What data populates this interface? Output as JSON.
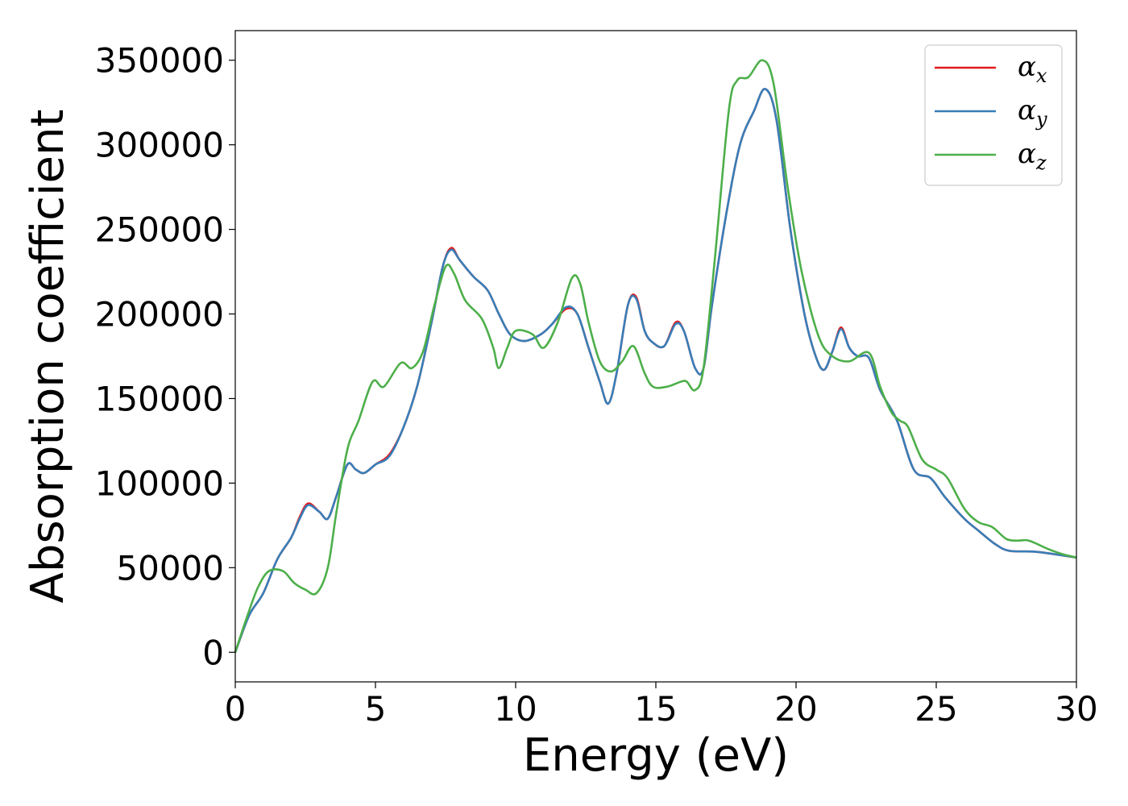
{
  "chart_data": {
    "type": "line",
    "xlabel": "Energy (eV)",
    "ylabel": "Absorption coefficient",
    "xlim": [
      0,
      30
    ],
    "ylim": [
      -17500,
      367500
    ],
    "grid": false,
    "legend_placement": "top-right",
    "x_ticks": [
      "0",
      "5",
      "10",
      "15",
      "20",
      "25",
      "30"
    ],
    "y_ticks": [
      "0",
      "50000",
      "100000",
      "150000",
      "200000",
      "250000",
      "300000",
      "350000"
    ],
    "series": [
      {
        "name": "α_x",
        "symbol": "α",
        "subscript": "x",
        "color": "#e41a1c",
        "points": [
          [
            0,
            0
          ],
          [
            0.5,
            22000
          ],
          [
            1.0,
            35000
          ],
          [
            1.5,
            55000
          ],
          [
            2.0,
            68000
          ],
          [
            2.3,
            80000
          ],
          [
            2.6,
            88000
          ],
          [
            3.0,
            83000
          ],
          [
            3.3,
            79000
          ],
          [
            3.6,
            92000
          ],
          [
            4.0,
            111000
          ],
          [
            4.3,
            108000
          ],
          [
            4.6,
            106000
          ],
          [
            5.0,
            111000
          ],
          [
            5.5,
            117000
          ],
          [
            6.0,
            133000
          ],
          [
            6.5,
            158000
          ],
          [
            7.0,
            195000
          ],
          [
            7.4,
            228000
          ],
          [
            7.7,
            239000
          ],
          [
            8.0,
            232000
          ],
          [
            8.5,
            222000
          ],
          [
            9.0,
            214000
          ],
          [
            9.4,
            200000
          ],
          [
            9.8,
            188000
          ],
          [
            10.3,
            184000
          ],
          [
            10.9,
            188000
          ],
          [
            11.3,
            194000
          ],
          [
            11.8,
            203000
          ],
          [
            12.2,
            200000
          ],
          [
            12.6,
            180000
          ],
          [
            13.0,
            160000
          ],
          [
            13.3,
            147000
          ],
          [
            13.6,
            165000
          ],
          [
            14.0,
            205000
          ],
          [
            14.3,
            210000
          ],
          [
            14.6,
            190000
          ],
          [
            14.9,
            183000
          ],
          [
            15.3,
            181000
          ],
          [
            15.7,
            195000
          ],
          [
            16.0,
            190000
          ],
          [
            16.4,
            168000
          ],
          [
            16.7,
            168000
          ],
          [
            17.0,
            205000
          ],
          [
            17.5,
            258000
          ],
          [
            18.0,
            300000
          ],
          [
            18.5,
            320000
          ],
          [
            18.9,
            333000
          ],
          [
            19.3,
            315000
          ],
          [
            19.8,
            250000
          ],
          [
            20.3,
            200000
          ],
          [
            20.7,
            175000
          ],
          [
            21.0,
            167000
          ],
          [
            21.3,
            178000
          ],
          [
            21.6,
            192000
          ],
          [
            21.9,
            180000
          ],
          [
            22.2,
            175000
          ],
          [
            22.6,
            174000
          ],
          [
            23.0,
            155000
          ],
          [
            23.6,
            137000
          ],
          [
            24.2,
            108000
          ],
          [
            24.8,
            103000
          ],
          [
            25.3,
            92000
          ],
          [
            26.0,
            79000
          ],
          [
            26.5,
            72000
          ],
          [
            27.1,
            64000
          ],
          [
            27.6,
            60000
          ],
          [
            28.5,
            59500
          ],
          [
            29.2,
            58000
          ],
          [
            30,
            56000
          ]
        ]
      },
      {
        "name": "α_y",
        "symbol": "α",
        "subscript": "y",
        "color": "#377eb8",
        "points": [
          [
            0,
            0
          ],
          [
            0.5,
            22000
          ],
          [
            1.0,
            35000
          ],
          [
            1.5,
            55000
          ],
          [
            2.0,
            68000
          ],
          [
            2.3,
            79000
          ],
          [
            2.6,
            87000
          ],
          [
            3.0,
            83000
          ],
          [
            3.3,
            79000
          ],
          [
            3.6,
            92000
          ],
          [
            4.0,
            111000
          ],
          [
            4.3,
            108000
          ],
          [
            4.6,
            106000
          ],
          [
            5.0,
            111000
          ],
          [
            5.5,
            116000
          ],
          [
            6.0,
            133000
          ],
          [
            6.5,
            158000
          ],
          [
            7.0,
            195000
          ],
          [
            7.4,
            228000
          ],
          [
            7.7,
            238000
          ],
          [
            8.0,
            232000
          ],
          [
            8.5,
            222000
          ],
          [
            9.0,
            214000
          ],
          [
            9.4,
            200000
          ],
          [
            9.8,
            188000
          ],
          [
            10.3,
            184000
          ],
          [
            10.9,
            188000
          ],
          [
            11.3,
            194000
          ],
          [
            11.8,
            204000
          ],
          [
            12.2,
            200000
          ],
          [
            12.6,
            180000
          ],
          [
            13.0,
            160000
          ],
          [
            13.3,
            147000
          ],
          [
            13.6,
            165000
          ],
          [
            14.0,
            205000
          ],
          [
            14.3,
            209000
          ],
          [
            14.6,
            190000
          ],
          [
            14.9,
            183000
          ],
          [
            15.3,
            181000
          ],
          [
            15.7,
            194000
          ],
          [
            16.0,
            190000
          ],
          [
            16.4,
            168000
          ],
          [
            16.7,
            168000
          ],
          [
            17.0,
            205000
          ],
          [
            17.5,
            258000
          ],
          [
            18.0,
            300000
          ],
          [
            18.5,
            320000
          ],
          [
            18.9,
            333000
          ],
          [
            19.3,
            315000
          ],
          [
            19.8,
            250000
          ],
          [
            20.3,
            200000
          ],
          [
            20.7,
            175000
          ],
          [
            21.0,
            167000
          ],
          [
            21.3,
            178000
          ],
          [
            21.6,
            191000
          ],
          [
            21.9,
            180000
          ],
          [
            22.2,
            175000
          ],
          [
            22.6,
            174000
          ],
          [
            23.0,
            155000
          ],
          [
            23.6,
            137000
          ],
          [
            24.2,
            108000
          ],
          [
            24.8,
            103000
          ],
          [
            25.3,
            92000
          ],
          [
            26.0,
            79000
          ],
          [
            26.5,
            72000
          ],
          [
            27.1,
            64000
          ],
          [
            27.6,
            60000
          ],
          [
            28.5,
            59500
          ],
          [
            29.2,
            58000
          ],
          [
            30,
            56000
          ]
        ]
      },
      {
        "name": "α_z",
        "symbol": "α",
        "subscript": "z",
        "color": "#4daf4a",
        "points": [
          [
            0,
            0
          ],
          [
            0.4,
            20000
          ],
          [
            0.8,
            38000
          ],
          [
            1.2,
            48000
          ],
          [
            1.7,
            48000
          ],
          [
            2.1,
            41000
          ],
          [
            2.5,
            37000
          ],
          [
            2.9,
            35000
          ],
          [
            3.3,
            50000
          ],
          [
            3.6,
            82000
          ],
          [
            4.0,
            120000
          ],
          [
            4.4,
            137000
          ],
          [
            4.9,
            160000
          ],
          [
            5.3,
            157000
          ],
          [
            5.9,
            171000
          ],
          [
            6.3,
            168000
          ],
          [
            6.7,
            178000
          ],
          [
            7.1,
            205000
          ],
          [
            7.5,
            228000
          ],
          [
            7.8,
            224000
          ],
          [
            8.2,
            208000
          ],
          [
            8.8,
            197000
          ],
          [
            9.2,
            180000
          ],
          [
            9.4,
            168000
          ],
          [
            9.7,
            180000
          ],
          [
            10.0,
            190000
          ],
          [
            10.6,
            188000
          ],
          [
            11.0,
            180000
          ],
          [
            11.5,
            195000
          ],
          [
            12.0,
            221000
          ],
          [
            12.3,
            218000
          ],
          [
            12.6,
            195000
          ],
          [
            13.0,
            172000
          ],
          [
            13.4,
            166000
          ],
          [
            13.8,
            172000
          ],
          [
            14.2,
            181000
          ],
          [
            14.6,
            165000
          ],
          [
            14.9,
            157000
          ],
          [
            15.4,
            157000
          ],
          [
            15.9,
            160000
          ],
          [
            16.1,
            160000
          ],
          [
            16.4,
            155000
          ],
          [
            16.7,
            168000
          ],
          [
            17.1,
            232000
          ],
          [
            17.6,
            320000
          ],
          [
            17.9,
            338000
          ],
          [
            18.3,
            340000
          ],
          [
            18.8,
            350000
          ],
          [
            19.2,
            336000
          ],
          [
            19.7,
            275000
          ],
          [
            20.2,
            225000
          ],
          [
            20.8,
            187000
          ],
          [
            21.3,
            175000
          ],
          [
            21.9,
            172000
          ],
          [
            22.6,
            177000
          ],
          [
            23.0,
            157000
          ],
          [
            23.4,
            142000
          ],
          [
            23.7,
            137000
          ],
          [
            24.0,
            133000
          ],
          [
            24.5,
            114000
          ],
          [
            25.0,
            108000
          ],
          [
            25.4,
            103000
          ],
          [
            26.0,
            85000
          ],
          [
            26.5,
            77000
          ],
          [
            27.0,
            74000
          ],
          [
            27.5,
            67000
          ],
          [
            27.9,
            66000
          ],
          [
            28.3,
            66000
          ],
          [
            29.0,
            61000
          ],
          [
            29.5,
            58000
          ],
          [
            30,
            56000
          ]
        ]
      }
    ]
  }
}
